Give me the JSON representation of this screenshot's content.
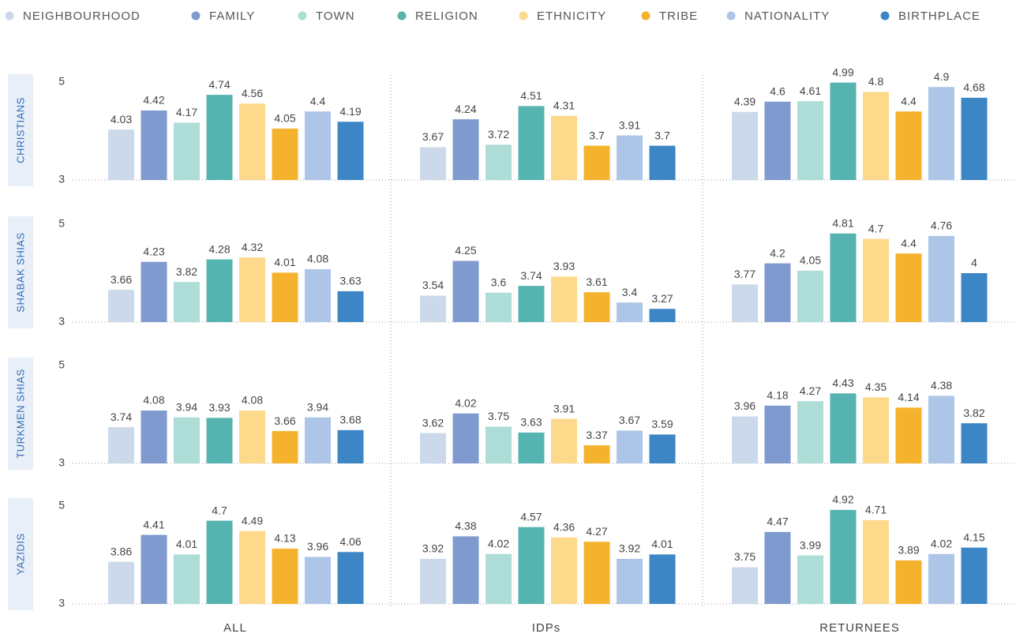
{
  "chart_data": {
    "type": "bar",
    "rows": [
      "CHRISTIANS",
      "SHABAK SHIAS",
      "TURKMEN SHIAS",
      "YAZIDIS"
    ],
    "columns": [
      "ALL",
      "IDPs",
      "RETURNEES"
    ],
    "ylim": [
      3,
      5
    ],
    "yticks": [
      3,
      5
    ],
    "series": [
      {
        "name": "NEIGHBOURHOOD",
        "color": "#ccd9ea",
        "values": [
          [
            4.03,
            3.67,
            4.39
          ],
          [
            3.66,
            3.54,
            3.77
          ],
          [
            3.74,
            3.62,
            3.96
          ],
          [
            3.86,
            3.92,
            3.75
          ]
        ]
      },
      {
        "name": "FAMILY",
        "color": "#7f9acf",
        "values": [
          [
            4.42,
            4.24,
            4.6
          ],
          [
            4.23,
            4.25,
            4.2
          ],
          [
            4.08,
            4.02,
            4.18
          ],
          [
            4.41,
            4.38,
            4.47
          ]
        ]
      },
      {
        "name": "TOWN",
        "color": "#aedcd6",
        "values": [
          [
            4.17,
            3.72,
            4.61
          ],
          [
            3.82,
            3.6,
            4.05
          ],
          [
            3.94,
            3.75,
            4.27
          ],
          [
            4.01,
            4.02,
            3.99
          ]
        ]
      },
      {
        "name": "RELIGION",
        "color": "#55b4b0",
        "values": [
          [
            4.74,
            4.51,
            4.99
          ],
          [
            4.28,
            3.74,
            4.81
          ],
          [
            3.93,
            3.63,
            4.43
          ],
          [
            4.7,
            4.57,
            4.92
          ]
        ]
      },
      {
        "name": "ETHNICITY",
        "color": "#fcd98b",
        "values": [
          [
            4.56,
            4.31,
            4.8
          ],
          [
            4.32,
            3.93,
            4.7
          ],
          [
            4.08,
            3.91,
            4.35
          ],
          [
            4.49,
            4.36,
            4.71
          ]
        ]
      },
      {
        "name": "TRIBE",
        "color": "#f5b32d",
        "values": [
          [
            4.05,
            3.7,
            4.4
          ],
          [
            4.01,
            3.61,
            4.4
          ],
          [
            3.66,
            3.37,
            4.14
          ],
          [
            4.13,
            4.27,
            3.89
          ]
        ]
      },
      {
        "name": "NATIONALITY",
        "color": "#adc5e7",
        "values": [
          [
            4.4,
            3.91,
            4.9
          ],
          [
            4.08,
            3.4,
            4.76
          ],
          [
            3.94,
            3.67,
            4.38
          ],
          [
            3.96,
            3.92,
            4.02
          ]
        ]
      },
      {
        "name": "BIRTHPLACE",
        "color": "#3d86c6",
        "values": [
          [
            4.19,
            3.7,
            4.68
          ],
          [
            3.63,
            3.27,
            4
          ],
          [
            3.68,
            3.59,
            3.82
          ],
          [
            4.06,
            4.01,
            4.15
          ]
        ]
      }
    ]
  }
}
